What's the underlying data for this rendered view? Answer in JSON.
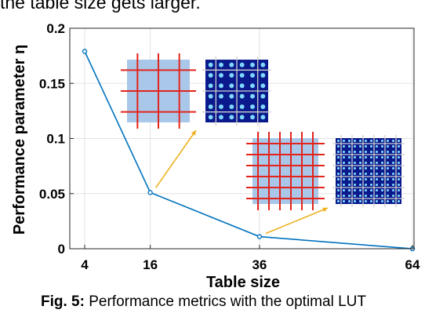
{
  "top_text": "the table size gets larger.",
  "caption": {
    "label": "Fig. 5:",
    "text": "Performance metrics with the optimal LUT"
  },
  "chart_data": {
    "type": "line",
    "xlabel": "Table size",
    "ylabel": "Performance parameter η",
    "x": [
      4,
      16,
      36,
      64
    ],
    "y": [
      0.179,
      0.051,
      0.011,
      0.0
    ],
    "x_ticks": [
      "4",
      "16",
      "36",
      "64"
    ],
    "y_ticks": [
      "0",
      "0.05",
      "0.1",
      "0.15",
      "0.2"
    ],
    "ylim": [
      0,
      0.2
    ],
    "grid": true,
    "series_color": "#0072BD",
    "inset_arrow_color": "#EDB120",
    "insets": [
      {
        "lines": 3,
        "anchor_x": 16
      },
      {
        "lines": 6,
        "anchor_x": 36
      }
    ]
  }
}
